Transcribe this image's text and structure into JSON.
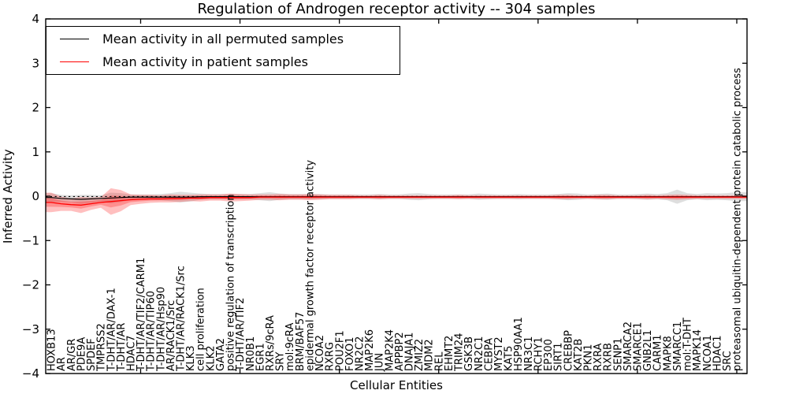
{
  "title": "Regulation of Androgen receptor activity -- 304 samples",
  "legend": {
    "items": [
      {
        "label": "Mean activity in all permuted samples",
        "color": "#000000"
      },
      {
        "label": "Mean activity in patient samples",
        "color": "#ff0000"
      }
    ]
  },
  "colors": {
    "permuted_line": "#000000",
    "patient_line": "#ff0000",
    "permuted_band": "#888888",
    "patient_band": "#ff0000",
    "axis": "#000000"
  },
  "chart_data": {
    "type": "line",
    "title": "Regulation of Androgen receptor activity -- 304 samples",
    "xlabel": "Cellular Entities",
    "ylabel": "Inferred Activity",
    "ylim": [
      -4,
      4
    ],
    "yticks": [
      4,
      3,
      2,
      1,
      0,
      -1,
      -2,
      -3,
      -4
    ],
    "xtick_index_positions": [
      9,
      19,
      29,
      39,
      49,
      59,
      69
    ],
    "legend_position": "upper left",
    "grid": false,
    "zero_reference_line": 0,
    "categories": [
      "HOXB13",
      "AR",
      "AR/GR",
      "PDE9A",
      "SPDEF",
      "TMPRSS2",
      "T-DHT/AR/DAX-1",
      "T-DHT/AR",
      "HDAC7",
      "T-DHT/AR/TIF2/CARM1",
      "T-DHT/AR/TIP60",
      "T-DHT/AR/Hsp90",
      "AR/RACK1/Src",
      "T-DHT/AR/RACK1/Src",
      "KLK3",
      "cell proliferation",
      "KLK2",
      "GATA2",
      "positive regulation of transcription",
      "T-DHT/AR/TIF2",
      "NR0B1",
      "EGR1",
      "RXRs/9cRA",
      "SRY",
      "mol:9cRA",
      "BRM/BAF57",
      "epidermal growth factor receptor activity",
      "NCOA2",
      "RXRG",
      "POU2F1",
      "FOXO1",
      "NR2C2",
      "MAP2K6",
      "JUN",
      "MAP2K4",
      "APPBP2",
      "DNAJA1",
      "ZMIZ2",
      "MDM2",
      "REL",
      "EHMT2",
      "TRIM24",
      "GSK3B",
      "NR2C1",
      "CEBPA",
      "MYST2",
      "KAT5",
      "HSP90AA1",
      "NR3C1",
      "RCHY1",
      "EP300",
      "SIRT1",
      "CREBBP",
      "KAT2B",
      "PKN1",
      "RXRA",
      "RXRB",
      "SENP1",
      "SMARCA2",
      "SMARCE1",
      "GNB2L1",
      "CARM1",
      "MAPK8",
      "SMARCC1",
      "mol:T-DHT",
      "MAPK14",
      "NCOA1",
      "HDAC1",
      "SRC",
      "proteasomal ubiquitin-dependent protein catabolic process"
    ],
    "series": [
      {
        "name": "Mean activity in all permuted samples",
        "color": "#000000",
        "values": [
          -0.03,
          -0.05,
          -0.06,
          -0.07,
          -0.06,
          -0.05,
          -0.04,
          -0.03,
          -0.02,
          -0.02,
          -0.02,
          -0.02,
          -0.02,
          -0.02,
          -0.02,
          -0.01,
          -0.01,
          -0.01,
          -0.01,
          -0.01,
          -0.01,
          -0.01,
          -0.01,
          -0.01,
          -0.01,
          -0.01,
          -0.01,
          -0.01,
          -0.01,
          -0.01,
          -0.01,
          -0.01,
          -0.01,
          -0.01,
          -0.01,
          -0.01,
          -0.01,
          -0.01,
          -0.01,
          -0.01,
          -0.01,
          -0.01,
          -0.01,
          -0.01,
          -0.01,
          -0.01,
          -0.01,
          -0.01,
          -0.01,
          -0.01,
          -0.01,
          -0.01,
          -0.01,
          -0.01,
          -0.01,
          -0.01,
          -0.01,
          -0.01,
          -0.01,
          -0.01,
          -0.01,
          -0.01,
          -0.01,
          -0.01,
          -0.01,
          -0.01,
          -0.01,
          -0.01,
          -0.01,
          -0.01
        ],
        "band_halfwidth": [
          0.1,
          0.08,
          0.08,
          0.1,
          0.09,
          0.07,
          0.12,
          0.1,
          0.06,
          0.06,
          0.06,
          0.07,
          0.09,
          0.12,
          0.1,
          0.07,
          0.06,
          0.06,
          0.06,
          0.06,
          0.06,
          0.08,
          0.1,
          0.07,
          0.06,
          0.06,
          0.06,
          0.06,
          0.05,
          0.05,
          0.05,
          0.05,
          0.05,
          0.06,
          0.05,
          0.05,
          0.07,
          0.08,
          0.06,
          0.05,
          0.05,
          0.05,
          0.05,
          0.07,
          0.06,
          0.05,
          0.05,
          0.06,
          0.05,
          0.05,
          0.05,
          0.06,
          0.08,
          0.07,
          0.05,
          0.06,
          0.07,
          0.05,
          0.05,
          0.06,
          0.07,
          0.06,
          0.08,
          0.16,
          0.08,
          0.06,
          0.08,
          0.07,
          0.08,
          0.1
        ]
      },
      {
        "name": "Mean activity in patient samples",
        "color": "#ff0000",
        "values": [
          -0.14,
          -0.17,
          -0.19,
          -0.2,
          -0.17,
          -0.14,
          -0.12,
          -0.1,
          -0.08,
          -0.07,
          -0.06,
          -0.06,
          -0.05,
          -0.05,
          -0.04,
          -0.04,
          -0.03,
          -0.03,
          -0.03,
          -0.03,
          -0.03,
          -0.02,
          -0.02,
          -0.02,
          -0.02,
          -0.02,
          -0.02,
          -0.02,
          -0.02,
          -0.02,
          -0.02,
          -0.02,
          -0.02,
          -0.02,
          -0.02,
          -0.02,
          -0.02,
          -0.02,
          -0.02,
          -0.02,
          -0.02,
          -0.02,
          -0.02,
          -0.02,
          -0.02,
          -0.02,
          -0.02,
          -0.02,
          -0.02,
          -0.02,
          -0.02,
          -0.02,
          -0.02,
          -0.02,
          -0.02,
          -0.02,
          -0.02,
          -0.02,
          -0.02,
          -0.02,
          -0.02,
          -0.02,
          -0.02,
          -0.02,
          -0.02,
          -0.02,
          -0.02,
          -0.02,
          -0.02,
          -0.02
        ],
        "band_halfwidth": [
          0.22,
          0.16,
          0.14,
          0.18,
          0.14,
          0.12,
          0.3,
          0.24,
          0.12,
          0.1,
          0.09,
          0.08,
          0.09,
          0.08,
          0.07,
          0.08,
          0.07,
          0.07,
          0.09,
          0.08,
          0.07,
          0.06,
          0.06,
          0.07,
          0.06,
          0.06,
          0.07,
          0.06,
          0.05,
          0.05,
          0.05,
          0.04,
          0.04,
          0.05,
          0.04,
          0.04,
          0.04,
          0.04,
          0.04,
          0.04,
          0.04,
          0.05,
          0.04,
          0.04,
          0.04,
          0.04,
          0.04,
          0.04,
          0.04,
          0.04,
          0.04,
          0.05,
          0.05,
          0.04,
          0.04,
          0.05,
          0.05,
          0.04,
          0.04,
          0.04,
          0.05,
          0.04,
          0.05,
          0.06,
          0.05,
          0.04,
          0.04,
          0.04,
          0.04,
          0.04
        ]
      }
    ]
  }
}
